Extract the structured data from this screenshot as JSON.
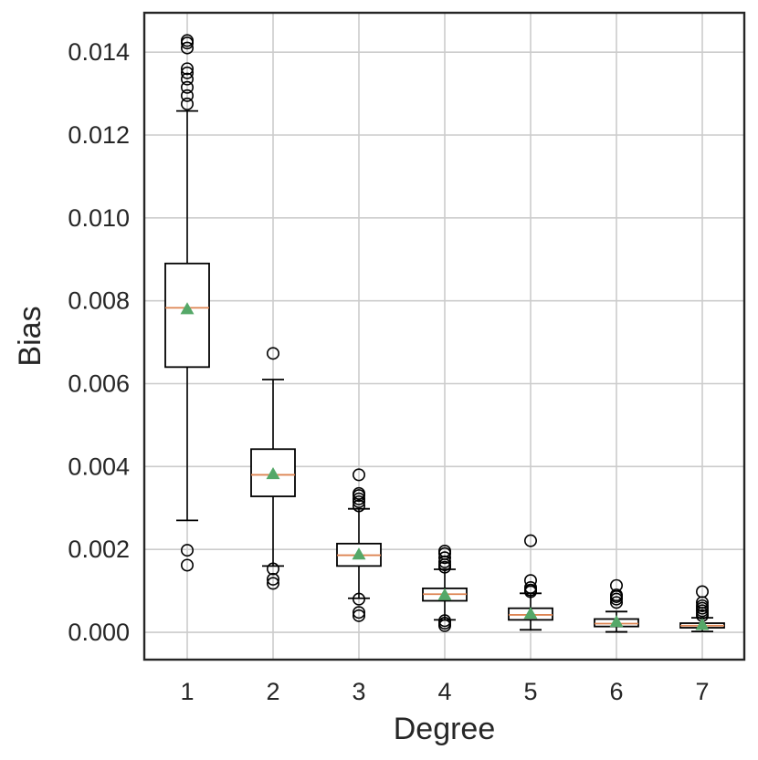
{
  "chart_data": {
    "type": "box",
    "title": "",
    "xlabel": "Degree",
    "ylabel": "Bias",
    "categories": [
      "1",
      "2",
      "3",
      "4",
      "5",
      "6",
      "7"
    ],
    "ylim": [
      -0.00066,
      0.01495
    ],
    "yticks": [
      "0.000",
      "0.002",
      "0.004",
      "0.006",
      "0.008",
      "0.010",
      "0.012",
      "0.014"
    ],
    "ytick_values": [
      0,
      0.002,
      0.004,
      0.006,
      0.008,
      0.01,
      0.012,
      0.014
    ],
    "grid": true,
    "colors": {
      "box": "#000000",
      "median": "#dd8452",
      "mean": "#55a868",
      "grid": "#cccccc",
      "frame": "#262626"
    },
    "boxes": [
      {
        "name": "1",
        "whislo": 0.0027,
        "q1": 0.0064,
        "med": 0.00783,
        "q3": 0.0089,
        "whishi": 0.01258,
        "mean": 0.0078,
        "fliers": [
          0.00162,
          0.00198,
          0.01275,
          0.01295,
          0.01315,
          0.01335,
          0.0135,
          0.0136,
          0.0141,
          0.01422,
          0.01428
        ]
      },
      {
        "name": "2",
        "whislo": 0.0016,
        "q1": 0.00328,
        "med": 0.0038,
        "q3": 0.00442,
        "whishi": 0.0061,
        "mean": 0.00382,
        "fliers": [
          0.00118,
          0.00128,
          0.00153,
          0.00673
        ]
      },
      {
        "name": "3",
        "whislo": 0.00082,
        "q1": 0.0016,
        "med": 0.00186,
        "q3": 0.00214,
        "whishi": 0.00298,
        "mean": 0.00188,
        "fliers": [
          0.0004,
          0.00048,
          0.0008,
          0.00305,
          0.00315,
          0.00322,
          0.0033,
          0.00335,
          0.0038
        ]
      },
      {
        "name": "4",
        "whislo": 0.0003,
        "q1": 0.00076,
        "med": 0.00092,
        "q3": 0.00106,
        "whishi": 0.00152,
        "mean": 0.0009,
        "fliers": [
          0.00016,
          0.00022,
          0.00028,
          0.00157,
          0.00163,
          0.0017,
          0.0018,
          0.0019,
          0.00196
        ]
      },
      {
        "name": "5",
        "whislo": 6e-05,
        "q1": 0.0003,
        "med": 0.00042,
        "q3": 0.00058,
        "whishi": 0.00094,
        "mean": 0.00045,
        "fliers": [
          0.00098,
          0.00102,
          0.00108,
          0.00125,
          0.00221
        ]
      },
      {
        "name": "6",
        "whislo": 1e-05,
        "q1": 0.00014,
        "med": 0.00021,
        "q3": 0.00032,
        "whishi": 0.0005,
        "mean": 0.00025,
        "fliers": [
          0.00072,
          0.0008,
          0.00086,
          0.0009,
          0.00113
        ]
      },
      {
        "name": "7",
        "whislo": 2e-05,
        "q1": 0.00011,
        "med": 0.00016,
        "q3": 0.00022,
        "whishi": 0.00035,
        "mean": 0.00018,
        "fliers": [
          0.0004,
          0.00046,
          0.00052,
          0.00058,
          0.00064,
          0.00072,
          0.00098
        ]
      }
    ]
  }
}
